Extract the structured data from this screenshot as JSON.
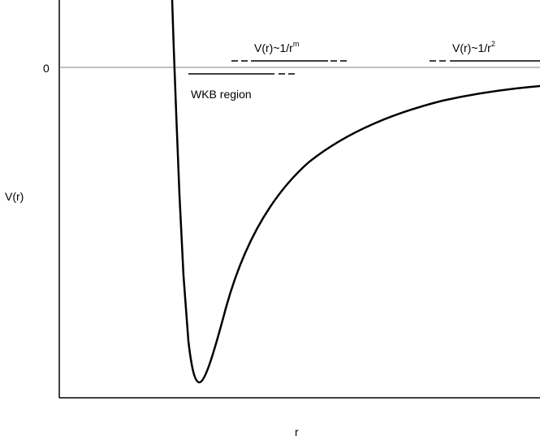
{
  "diagram": {
    "type": "potential-curve",
    "y_axis_label": "V(r)",
    "x_axis_label": "r",
    "zero_tick_label": "0",
    "region_labels": {
      "wkb": "WKB region",
      "inverse_power_base": "V(r)~1/r",
      "inverse_power_exponent": "m",
      "inverse_square_base": "V(r)~1/r",
      "inverse_square_exponent": "2"
    },
    "colors": {
      "curve": "#000000",
      "axes": "#000000",
      "zero_line": "#7f7f7f",
      "background": "#ffffff"
    }
  }
}
